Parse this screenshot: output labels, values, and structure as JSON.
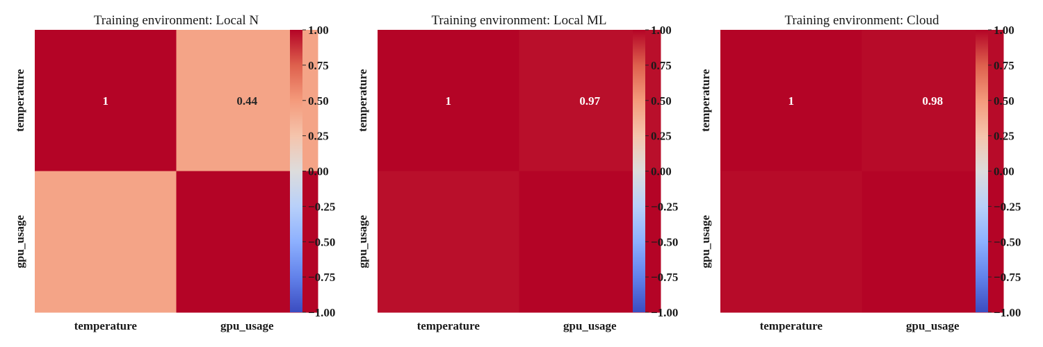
{
  "chart_data": [
    {
      "type": "heatmap",
      "title": "Training environment: Local N",
      "x_labels": [
        "temperature",
        "gpu_usage"
      ],
      "y_labels": [
        "temperature",
        "gpu_usage"
      ],
      "values": [
        [
          1.0,
          0.44
        ],
        [
          0.44,
          1.0
        ]
      ],
      "annotations": [
        [
          "1",
          "0.44"
        ],
        [
          "",
          ""
        ]
      ],
      "colormap": "coolwarm",
      "vmin": -1.0,
      "vmax": 1.0,
      "colorbar_ticks": [
        "1.00",
        "0.75",
        "0.50",
        "0.25",
        "0.00",
        "−0.25",
        "−0.50",
        "−0.75",
        "−1.00"
      ]
    },
    {
      "type": "heatmap",
      "title": "Training environment: Local ML",
      "x_labels": [
        "temperature",
        "gpu_usage"
      ],
      "y_labels": [
        "temperature",
        "gpu_usage"
      ],
      "values": [
        [
          1.0,
          0.97
        ],
        [
          0.97,
          1.0
        ]
      ],
      "annotations": [
        [
          "1",
          "0.97"
        ],
        [
          "",
          ""
        ]
      ],
      "colormap": "coolwarm",
      "vmin": -1.0,
      "vmax": 1.0,
      "colorbar_ticks": [
        "1.00",
        "0.75",
        "0.50",
        "0.25",
        "0.00",
        "−0.25",
        "−0.50",
        "−0.75",
        "−1.00"
      ]
    },
    {
      "type": "heatmap",
      "title": "Training environment: Cloud",
      "x_labels": [
        "temperature",
        "gpu_usage"
      ],
      "y_labels": [
        "temperature",
        "gpu_usage"
      ],
      "values": [
        [
          1.0,
          0.98
        ],
        [
          0.98,
          1.0
        ]
      ],
      "annotations": [
        [
          "1",
          "0.98"
        ],
        [
          "",
          ""
        ]
      ],
      "colormap": "coolwarm",
      "vmin": -1.0,
      "vmax": 1.0,
      "colorbar_ticks": [
        "1.00",
        "0.75",
        "0.50",
        "0.25",
        "0.00",
        "−0.25",
        "−0.50",
        "−0.75",
        "−1.00"
      ]
    }
  ]
}
